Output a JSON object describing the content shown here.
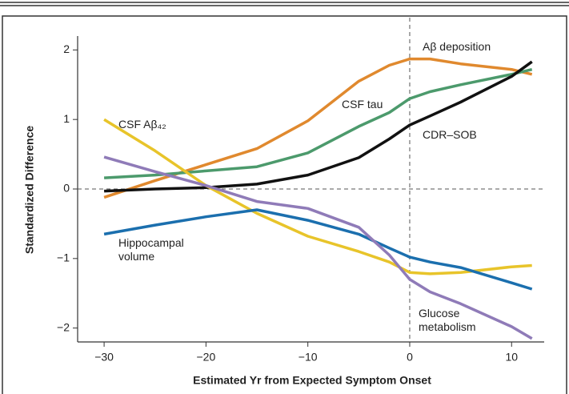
{
  "chart_data": {
    "type": "line",
    "x_label": "Estimated Yr from Expected Symptom Onset",
    "y_label": "Standardized Difference",
    "x": [
      -30,
      -25,
      -20,
      -15,
      -10,
      -5,
      -2,
      0,
      2,
      5,
      10,
      12
    ],
    "series": [
      {
        "name": "Aβ deposition",
        "color": "#e0892e",
        "values": [
          -0.12,
          0.12,
          0.35,
          0.58,
          0.98,
          1.55,
          1.78,
          1.87,
          1.87,
          1.8,
          1.72,
          1.65
        ]
      },
      {
        "name": "CSF tau",
        "color": "#4c9a6c",
        "values": [
          0.16,
          0.2,
          0.26,
          0.32,
          0.52,
          0.9,
          1.1,
          1.3,
          1.4,
          1.5,
          1.65,
          1.72
        ]
      },
      {
        "name": "CDR–SOB",
        "color": "#111111",
        "values": [
          -0.03,
          0,
          0.02,
          0.07,
          0.2,
          0.45,
          0.72,
          0.92,
          1.05,
          1.25,
          1.62,
          1.83
        ]
      },
      {
        "name": "CSF Aβ₄₂",
        "color": "#e8c42a",
        "values": [
          1.0,
          0.55,
          0.05,
          -0.35,
          -0.68,
          -0.9,
          -1.05,
          -1.2,
          -1.22,
          -1.2,
          -1.12,
          -1.1
        ]
      },
      {
        "name": "Hippocampal volume",
        "color": "#1b6fae",
        "values": [
          -0.65,
          -0.52,
          -0.4,
          -0.3,
          -0.45,
          -0.65,
          -0.85,
          -0.98,
          -1.05,
          -1.13,
          -1.35,
          -1.44
        ]
      },
      {
        "name": "Glucose metabolism",
        "color": "#8f7bb8",
        "values": [
          0.46,
          0.25,
          0.05,
          -0.18,
          -0.28,
          -0.55,
          -0.95,
          -1.3,
          -1.48,
          -1.65,
          -1.98,
          -2.15
        ]
      }
    ],
    "xlim": [
      -32.6,
      13.2
    ],
    "ylim": [
      -2.2,
      2.2
    ],
    "xticks": [
      {
        "value": -30,
        "label": "−30"
      },
      {
        "value": -20,
        "label": "−20"
      },
      {
        "value": -10,
        "label": "−10"
      },
      0,
      10
    ],
    "yticks": [
      {
        "value": -2,
        "label": "−2"
      },
      {
        "value": -1,
        "label": "−1"
      },
      0,
      1,
      2
    ],
    "reference_lines": {
      "x": 0,
      "y": 0
    }
  }
}
